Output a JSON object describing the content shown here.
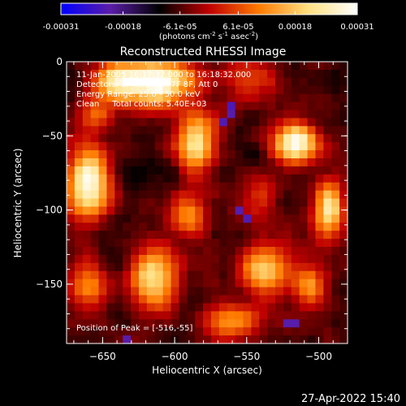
{
  "chart_data": {
    "type": "heatmap",
    "title": "Reconstructed RHESSI Image",
    "xlabel": "Heliocentric X (arcsec)",
    "ylabel": "Heliocentric Y (arcsec)",
    "xlim": [
      -675,
      -480
    ],
    "ylim": [
      -190,
      0
    ],
    "x_ticks": [
      -650,
      -600,
      -550,
      -500
    ],
    "y_ticks": [
      0,
      -50,
      -100,
      -150
    ],
    "colorbar": {
      "ticks": [
        "-0.00031",
        "-0.00018",
        "-6.1e-05",
        "6.1e-05",
        "0.00018",
        "0.00031"
      ],
      "tick_values": [
        -0.00031,
        -0.00018,
        -6.1e-05,
        6.1e-05,
        0.00018,
        0.00031
      ],
      "range": [
        -0.00031,
        0.00031
      ],
      "units_prefix": "(photons cm",
      "units_e1": "-2",
      "units_mid1": " s",
      "units_e2": "-1",
      "units_mid2": " asec",
      "units_e3": "-2",
      "units_suffix": ")",
      "colors": [
        "#0000ff",
        "#5a1ea8",
        "#000000",
        "#c00000",
        "#ff7a00",
        "#ffe080",
        "#ffffff"
      ]
    },
    "annotations": {
      "time_range": "11-Jan-2005 16:17:32.000 to 16:18:32.000",
      "detectors": "Detectors: 3F 4F 5F 6F 7F 8F, Att 0",
      "energy": "Energy Range: 25.0 - 50.0 keV",
      "clean": "Clean     Total counts: 5.40E+03",
      "peak": "Position of Peak = [-516,-55]"
    },
    "peak": [
      -516,
      -55
    ],
    "sources": [
      {
        "x": -612,
        "y": -14,
        "sx": 18,
        "sy": 10,
        "amp": 1.0
      },
      {
        "x": -640,
        "y": -12,
        "sx": 12,
        "sy": 10,
        "amp": 0.55
      },
      {
        "x": -516,
        "y": -55,
        "sx": 10,
        "sy": 9,
        "amp": 1.0
      },
      {
        "x": -660,
        "y": -82,
        "sx": 10,
        "sy": 16,
        "amp": 0.95
      },
      {
        "x": -585,
        "y": -55,
        "sx": 9,
        "sy": 14,
        "amp": 0.75
      },
      {
        "x": -590,
        "y": -105,
        "sx": 10,
        "sy": 10,
        "amp": 0.45
      },
      {
        "x": -493,
        "y": -100,
        "sx": 7,
        "sy": 14,
        "amp": 0.75
      },
      {
        "x": -615,
        "y": -145,
        "sx": 11,
        "sy": 14,
        "amp": 0.8
      },
      {
        "x": -537,
        "y": -140,
        "sx": 12,
        "sy": 12,
        "amp": 0.65
      },
      {
        "x": -560,
        "y": -175,
        "sx": 14,
        "sy": 8,
        "amp": 0.5
      },
      {
        "x": -506,
        "y": -150,
        "sx": 8,
        "sy": 12,
        "amp": 0.45
      },
      {
        "x": -660,
        "y": -150,
        "sx": 9,
        "sy": 12,
        "amp": 0.45
      },
      {
        "x": -546,
        "y": -12,
        "sx": 12,
        "sy": 9,
        "amp": 0.35
      },
      {
        "x": -655,
        "y": -35,
        "sx": 9,
        "sy": 9,
        "amp": 0.4
      },
      {
        "x": -540,
        "y": -90,
        "sx": 8,
        "sy": 10,
        "amp": 0.3
      }
    ]
  },
  "footer": {
    "timestamp": "27-Apr-2022 15:40"
  }
}
